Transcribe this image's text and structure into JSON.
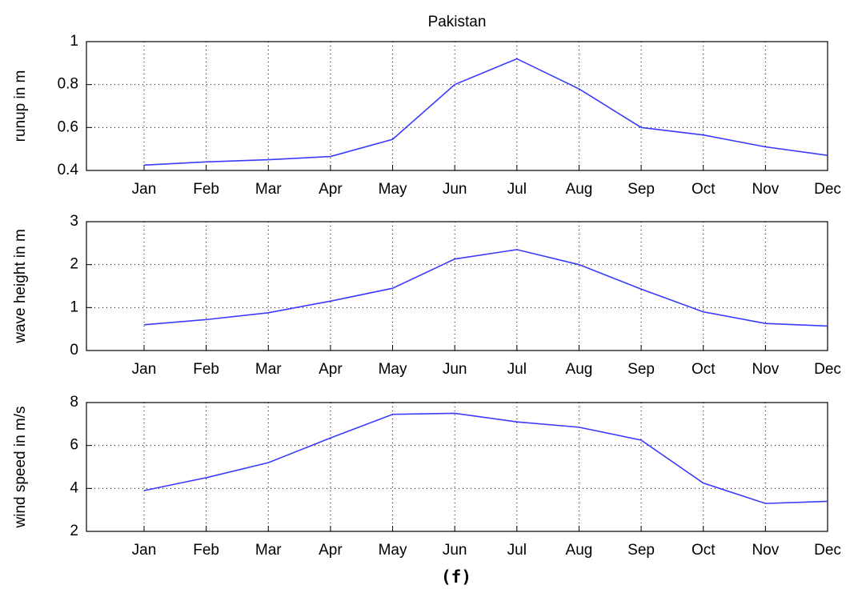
{
  "chart_data": [
    {
      "type": "line",
      "title": "Pakistan",
      "y_label": "runup in m",
      "categories": [
        "Jan",
        "Feb",
        "Mar",
        "Apr",
        "May",
        "Jun",
        "Jul",
        "Aug",
        "Sep",
        "Oct",
        "Nov",
        "Dec"
      ],
      "values": [
        0.425,
        0.44,
        0.45,
        0.465,
        0.545,
        0.8,
        0.92,
        0.78,
        0.6,
        0.565,
        0.51,
        0.47
      ],
      "color": "#3a3aff",
      "ylim": [
        0.4,
        1
      ],
      "yticks": [
        0.4,
        0.6,
        0.8,
        1
      ],
      "grid": true
    },
    {
      "type": "line",
      "y_label": "wave height in m",
      "categories": [
        "Jan",
        "Feb",
        "Mar",
        "Apr",
        "May",
        "Jun",
        "Jul",
        "Aug",
        "Sep",
        "Oct",
        "Nov",
        "Dec"
      ],
      "values": [
        0.6,
        0.72,
        0.88,
        1.15,
        1.45,
        2.13,
        2.35,
        2.0,
        1.43,
        0.9,
        0.63,
        0.57
      ],
      "color": "#3a3aff",
      "ylim": [
        0,
        3
      ],
      "yticks": [
        0,
        1,
        2,
        3
      ],
      "grid": true
    },
    {
      "type": "line",
      "y_label": "wind speed in m/s",
      "categories": [
        "Jan",
        "Feb",
        "Mar",
        "Apr",
        "May",
        "Jun",
        "Jul",
        "Aug",
        "Sep",
        "Oct",
        "Nov",
        "Dec"
      ],
      "values": [
        3.9,
        4.5,
        5.2,
        6.35,
        7.45,
        7.5,
        7.1,
        6.85,
        6.25,
        4.25,
        3.3,
        3.4
      ],
      "color": "#3a3aff",
      "ylim": [
        2,
        8
      ],
      "yticks": [
        2,
        4,
        6,
        8
      ],
      "grid": true
    }
  ],
  "caption": "(f)"
}
